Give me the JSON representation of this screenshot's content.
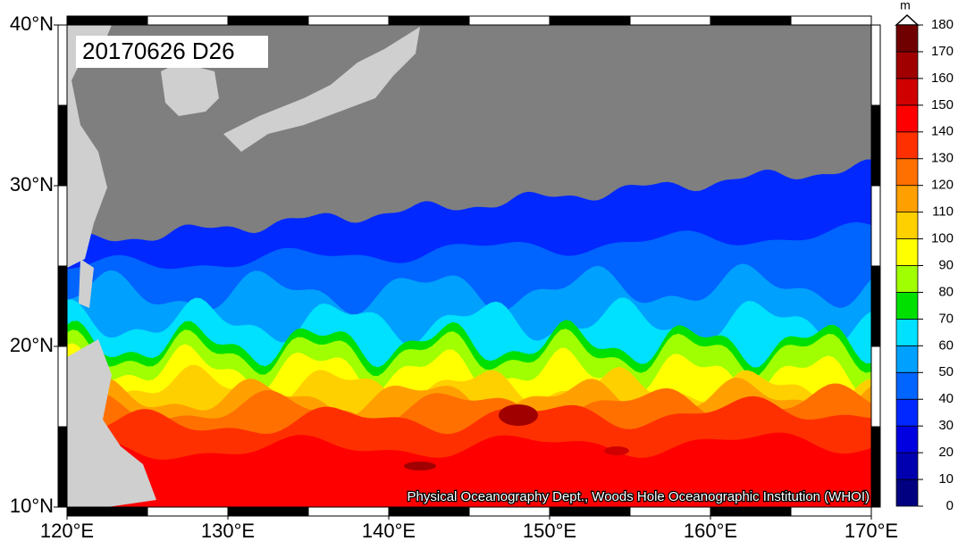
{
  "map": {
    "label": "20170626 D26",
    "credit": "Physical Oceanography Dept., Woods Hole Oceanographic Institution (WHOI)",
    "lat_ticks": [
      {
        "value": 10,
        "label": "10°N"
      },
      {
        "value": 20,
        "label": "20°N"
      },
      {
        "value": 30,
        "label": "30°N"
      },
      {
        "value": 40,
        "label": "40°N"
      }
    ],
    "lon_ticks": [
      {
        "value": 120,
        "label": "120°E"
      },
      {
        "value": 130,
        "label": "130°E"
      },
      {
        "value": 140,
        "label": "140°E"
      },
      {
        "value": 150,
        "label": "150°E"
      },
      {
        "value": 160,
        "label": "160°E"
      },
      {
        "value": 170,
        "label": "170°E"
      }
    ],
    "colorbar": {
      "unit": "m",
      "ticks": [
        0,
        10,
        20,
        30,
        40,
        50,
        60,
        70,
        80,
        90,
        100,
        110,
        120,
        130,
        140,
        150,
        160,
        170,
        180
      ],
      "colors": [
        "#000080",
        "#0000b0",
        "#0000e0",
        "#0028ff",
        "#0064ff",
        "#00a0ff",
        "#00e0ff",
        "#00e000",
        "#a0ff00",
        "#ffff00",
        "#ffd000",
        "#ffa000",
        "#ff7000",
        "#ff3000",
        "#ff0000",
        "#d00000",
        "#a00000",
        "#700000"
      ]
    }
  }
}
